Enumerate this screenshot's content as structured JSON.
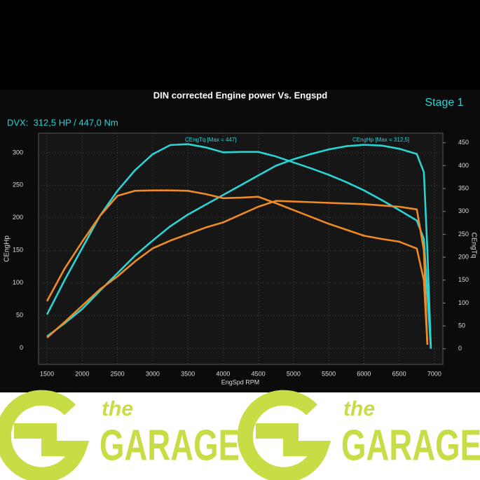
{
  "chart_data": {
    "type": "line",
    "title": "DIN corrected Engine power Vs. Engspd",
    "subtitle": "Stage 1",
    "summary": "DVX:  312,5 HP / 447,0 Nm",
    "xlabel": "EngSpd RPM",
    "ylabel": "CEngHp",
    "y2label": "CEngTq",
    "annotations": [
      "CEngTq [Max = 447]",
      "CEngHp [Max = 312,5]"
    ],
    "x": [
      1500,
      1750,
      2000,
      2250,
      2500,
      2750,
      3000,
      3250,
      3500,
      3750,
      4000,
      4250,
      4500,
      4750,
      5000,
      5250,
      5500,
      5750,
      6000,
      6250,
      6500,
      6750,
      6850,
      6900,
      6950
    ],
    "series": [
      {
        "color": "#2ad4d4",
        "values": [
          18,
          38,
          60,
          88,
          115,
          142,
          165,
          187,
          205,
          220,
          235,
          250,
          265,
          280,
          290,
          298,
          305,
          310,
          312,
          311,
          306,
          298,
          270,
          150,
          0
        ]
      },
      {
        "color": "#2ad4d4",
        "axis": "y2",
        "values": [
          75,
          150,
          220,
          290,
          345,
          390,
          425,
          445,
          447,
          440,
          429,
          430,
          430,
          420,
          407,
          394,
          380,
          364,
          346,
          325,
          303,
          280,
          240,
          120,
          0
        ]
      },
      {
        "color": "#f08a24",
        "values": [
          16,
          40,
          65,
          90,
          110,
          133,
          153,
          165,
          175,
          185,
          193,
          205,
          217,
          226,
          225,
          224,
          223,
          222,
          221,
          219,
          217,
          213,
          150,
          5,
          null
        ]
      },
      {
        "color": "#f08a24",
        "axis": "y2",
        "values": [
          104,
          175,
          234,
          290,
          334,
          345,
          346,
          346,
          345,
          338,
          329,
          330,
          332,
          318,
          303,
          288,
          273,
          260,
          247,
          240,
          234,
          219,
          150,
          10,
          null
        ]
      }
    ],
    "xlim": [
      1380,
      7120
    ],
    "ylim": [
      -25,
      330
    ],
    "y2lim": [
      -34,
      471
    ],
    "xticks": [
      1500,
      2000,
      2500,
      3000,
      3500,
      4000,
      4500,
      5000,
      5500,
      6000,
      6500,
      7000
    ],
    "yticks": [
      0,
      50,
      100,
      150,
      200,
      250,
      300
    ],
    "y2ticks": [
      0,
      50,
      100,
      150,
      200,
      250,
      300,
      350,
      400,
      450
    ],
    "grid": true
  },
  "footer": {
    "logos": [
      {
        "small": "the",
        "big": "GARAGE"
      },
      {
        "small": "the",
        "big": "GARAGE"
      }
    ]
  }
}
